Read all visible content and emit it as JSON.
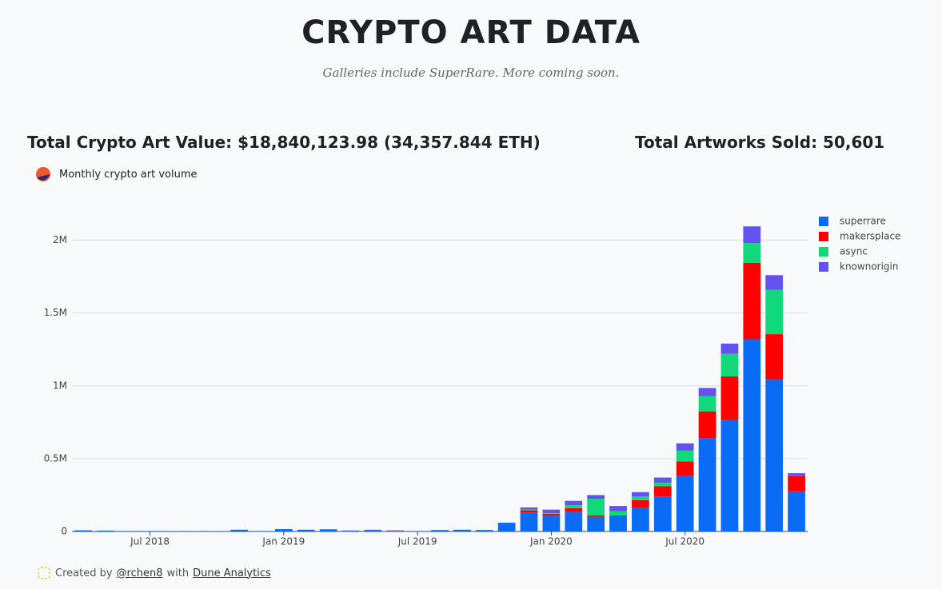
{
  "header": {
    "title": "CRYPTO ART DATA",
    "subtitle": "Galleries include SuperRare. More coming soon."
  },
  "stats": {
    "value": "Total Crypto Art Value: $18,840,123.98 (34,357.844 ETH)",
    "artworks": "Total Artworks Sold: 50,601"
  },
  "panel_title": "Monthly crypto art volume",
  "footer": {
    "prefix": "Created by",
    "author": "@rchen8",
    "middle": "with",
    "platform": "Dune Analytics"
  },
  "chart_data": {
    "type": "stacked_bar",
    "x": [
      "2018-04",
      "2018-05",
      "2018-06",
      "2018-07",
      "2018-08",
      "2018-09",
      "2018-10",
      "2018-11",
      "2018-12",
      "2019-01",
      "2019-02",
      "2019-03",
      "2019-04",
      "2019-05",
      "2019-06",
      "2019-07",
      "2019-08",
      "2019-09",
      "2019-10",
      "2019-11",
      "2019-12",
      "2020-01",
      "2020-02",
      "2020-03",
      "2020-04",
      "2020-05",
      "2020-06",
      "2020-07",
      "2020-08",
      "2020-09",
      "2020-10",
      "2020-11",
      "2020-12"
    ],
    "series": [
      {
        "name": "superrare",
        "color": "#0a6cf5",
        "values": [
          8000,
          6000,
          3000,
          3000,
          2000,
          2000,
          2000,
          12000,
          3000,
          16000,
          12000,
          15000,
          4000,
          6000,
          4000,
          2000,
          10000,
          12000,
          10000,
          60000,
          130000,
          110000,
          135000,
          100000,
          105000,
          165000,
          240000,
          380000,
          640000,
          765000,
          1320000,
          1045000,
          275000
        ]
      },
      {
        "name": "makersplace",
        "color": "#ff0000",
        "values": [
          0,
          0,
          0,
          0,
          0,
          0,
          0,
          0,
          0,
          0,
          0,
          0,
          0,
          3000,
          2000,
          0,
          0,
          0,
          0,
          0,
          15000,
          12000,
          25000,
          10000,
          5000,
          50000,
          70000,
          100000,
          185000,
          300000,
          525000,
          310000,
          105000
        ]
      },
      {
        "name": "async",
        "color": "#12d87c",
        "values": [
          0,
          0,
          0,
          0,
          0,
          0,
          0,
          0,
          0,
          0,
          0,
          0,
          0,
          0,
          0,
          0,
          0,
          0,
          0,
          0,
          5000,
          3000,
          20000,
          115000,
          30000,
          25000,
          25000,
          75000,
          105000,
          155000,
          135000,
          305000,
          0
        ]
      },
      {
        "name": "knownorigin",
        "color": "#6352f0",
        "values": [
          0,
          0,
          0,
          0,
          0,
          0,
          0,
          0,
          0,
          0,
          0,
          0,
          3000,
          3000,
          2000,
          1000,
          0,
          0,
          0,
          0,
          15000,
          25000,
          30000,
          25000,
          35000,
          30000,
          35000,
          50000,
          55000,
          70000,
          115000,
          100000,
          20000
        ]
      }
    ],
    "xticks": [
      {
        "value": "2018-07",
        "label": "Jul 2018"
      },
      {
        "value": "2019-01",
        "label": "Jan 2019"
      },
      {
        "value": "2019-07",
        "label": "Jul 2019"
      },
      {
        "value": "2020-01",
        "label": "Jan 2020"
      },
      {
        "value": "2020-07",
        "label": "Jul 2020"
      }
    ],
    "ylim": [
      0,
      2250000
    ],
    "yticks": [
      0,
      {
        "value": 500000,
        "label": "0.5M"
      },
      {
        "value": 1000000,
        "label": "1M"
      },
      {
        "value": 1500000,
        "label": "1.5M"
      },
      {
        "value": 2000000,
        "label": "2M"
      }
    ],
    "grid": true,
    "legend": "right"
  }
}
